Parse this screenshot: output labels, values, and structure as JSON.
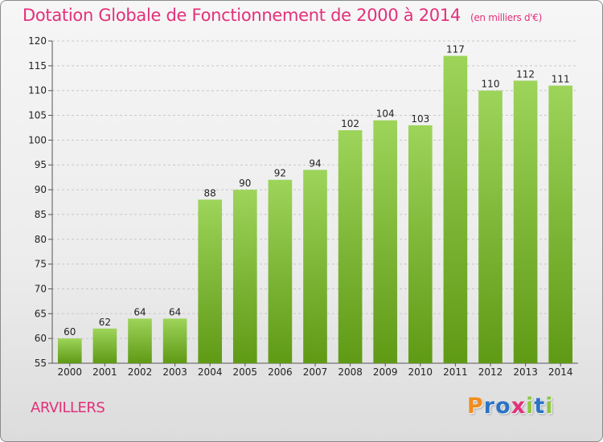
{
  "header": {
    "title": "Dotation Globale de Fonctionnement de 2000 à 2014",
    "unit": "(en milliers d'€)"
  },
  "footer": {
    "commune": "ARVILLERS",
    "logo_letters": [
      "P",
      "r",
      "o",
      "x",
      "i",
      "t",
      "i"
    ],
    "logo_colors": [
      "#f28c1b",
      "#2a73c6",
      "#2a73c6",
      "#e3307a",
      "#8cc63f",
      "#2a73c6",
      "#8cc63f"
    ]
  },
  "colors": {
    "accent": "#e3307a",
    "bar_top": "#9dd45a",
    "bar_bottom": "#5f9a15",
    "grid": "#c8c8c8"
  },
  "chart_data": {
    "type": "bar",
    "title": "Dotation Globale de Fonctionnement de 2000 à 2014",
    "subtitle": "(en milliers d'€)",
    "categories": [
      "2000",
      "2001",
      "2002",
      "2003",
      "2004",
      "2005",
      "2006",
      "2007",
      "2008",
      "2009",
      "2010",
      "2011",
      "2012",
      "2013",
      "2014"
    ],
    "values": [
      60,
      62,
      64,
      64,
      88,
      90,
      92,
      94,
      102,
      104,
      103,
      117,
      110,
      112,
      111
    ],
    "ylim": [
      55,
      120
    ],
    "yticks": [
      55,
      60,
      65,
      70,
      75,
      80,
      85,
      90,
      95,
      100,
      105,
      110,
      115,
      120
    ],
    "grid": true,
    "xlabel": "",
    "ylabel": ""
  }
}
